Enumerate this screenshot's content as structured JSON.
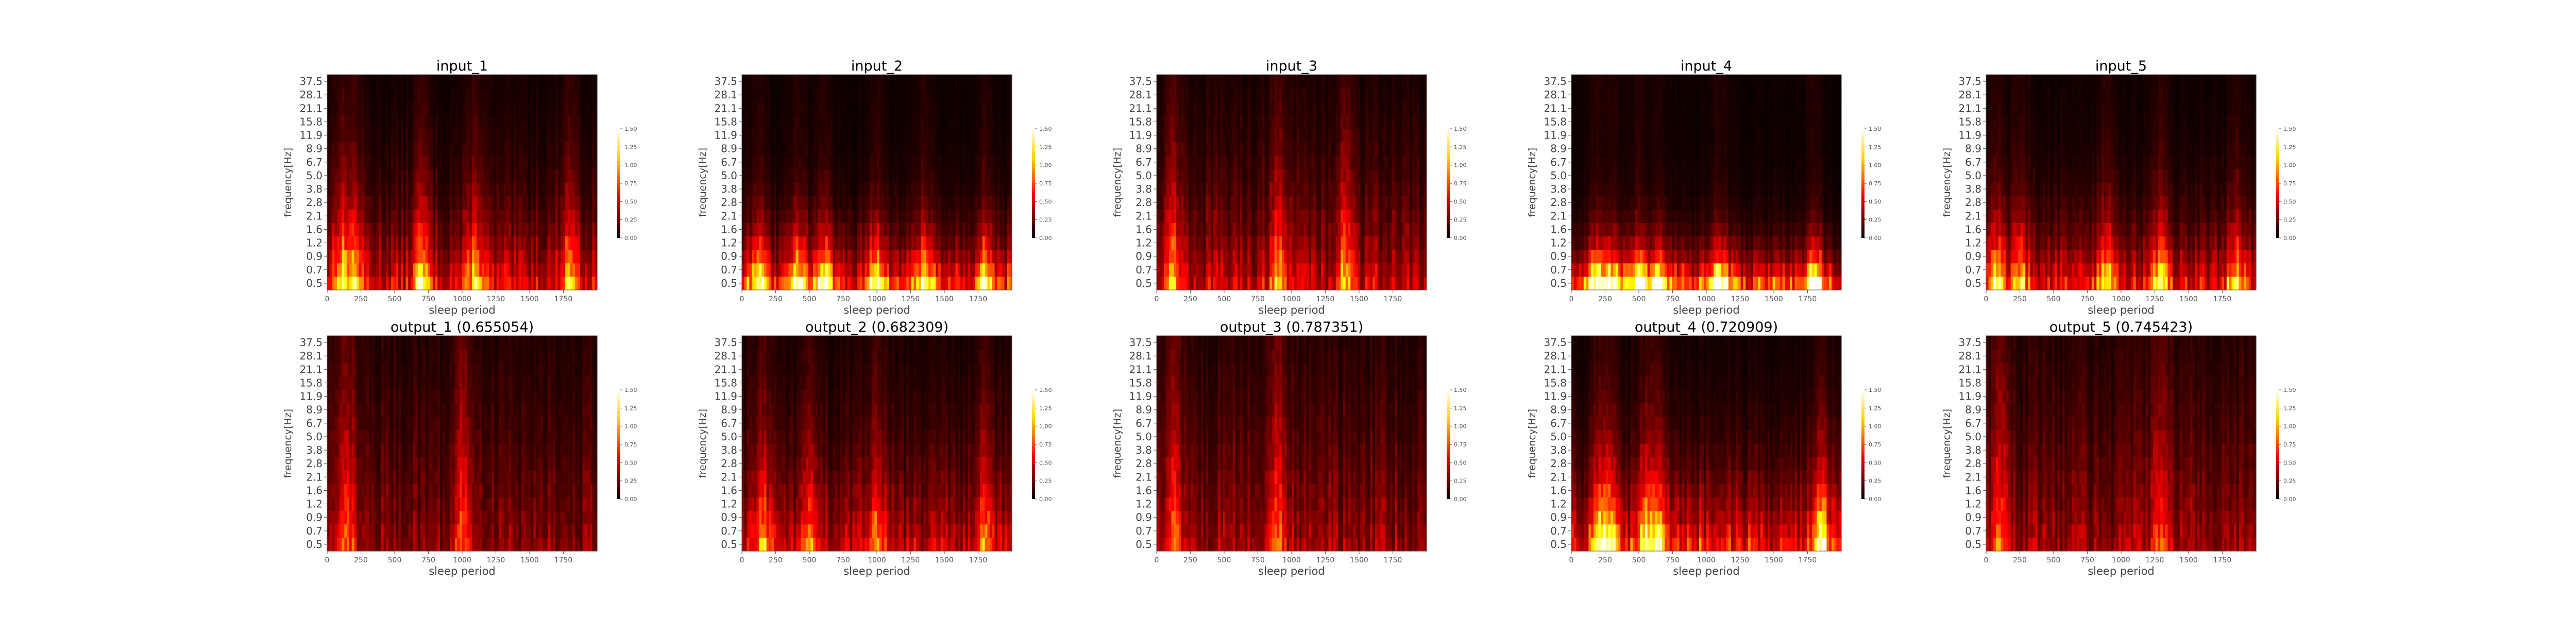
{
  "figure": {
    "colormap": "hot",
    "axis_color": "#555555",
    "background": "#ffffff"
  },
  "chart_data": [
    {
      "type": "heatmap",
      "title": "input_1",
      "xlabel": "sleep period",
      "ylabel": "frequency[Hz]",
      "xticks": [
        "0",
        "250",
        "500",
        "750",
        "1000",
        "1250",
        "1500",
        "1750"
      ],
      "xlim": [
        0,
        2000
      ],
      "yticks": [
        "0.5",
        "0.7",
        "0.9",
        "1.2",
        "1.6",
        "2.1",
        "2.8",
        "3.8",
        "5.0",
        "6.7",
        "8.9",
        "11.9",
        "15.8",
        "21.1",
        "28.1",
        "37.5"
      ],
      "colorbar": {
        "ticks": [
          "0.00",
          "0.25",
          "0.50",
          "0.75",
          "1.00",
          "1.25",
          "1.50"
        ],
        "range": [
          0,
          1.5
        ]
      },
      "intensity_profile": {
        "low_freq_level": 0.75,
        "decay": 0.8,
        "bright_times": [
          100,
          200,
          700,
          1100,
          1800
        ]
      }
    },
    {
      "type": "heatmap",
      "title": "input_2",
      "xlabel": "sleep period",
      "ylabel": "frequency[Hz]",
      "xticks": [
        "0",
        "250",
        "500",
        "750",
        "1000",
        "1250",
        "1500",
        "1750"
      ],
      "xlim": [
        0,
        2000
      ],
      "yticks": [
        "0.5",
        "0.7",
        "0.9",
        "1.2",
        "1.6",
        "2.1",
        "2.8",
        "3.8",
        "5.0",
        "6.7",
        "8.9",
        "11.9",
        "15.8",
        "21.1",
        "28.1",
        "37.5"
      ],
      "colorbar": {
        "ticks": [
          "0.00",
          "0.25",
          "0.50",
          "0.75",
          "1.00",
          "1.25",
          "1.50"
        ],
        "range": [
          0,
          1.5
        ]
      },
      "intensity_profile": {
        "low_freq_level": 0.95,
        "decay": 0.7,
        "bright_times": [
          130,
          420,
          600,
          1000,
          1350,
          1800
        ]
      }
    },
    {
      "type": "heatmap",
      "title": "input_3",
      "xlabel": "sleep period",
      "ylabel": "frequency[Hz]",
      "xticks": [
        "0",
        "250",
        "500",
        "750",
        "1000",
        "1250",
        "1500",
        "1750"
      ],
      "xlim": [
        0,
        2000
      ],
      "yticks": [
        "0.5",
        "0.7",
        "0.9",
        "1.2",
        "1.6",
        "2.1",
        "2.8",
        "3.8",
        "5.0",
        "6.7",
        "8.9",
        "11.9",
        "15.8",
        "21.1",
        "28.1",
        "37.5"
      ],
      "colorbar": {
        "ticks": [
          "0.00",
          "0.25",
          "0.50",
          "0.75",
          "1.00",
          "1.25",
          "1.50"
        ],
        "range": [
          0,
          1.5
        ]
      },
      "intensity_profile": {
        "low_freq_level": 0.65,
        "decay": 0.85,
        "bright_times": [
          120,
          900,
          1400
        ]
      }
    },
    {
      "type": "heatmap",
      "title": "input_4",
      "xlabel": "sleep period",
      "ylabel": "frequency[Hz]",
      "xticks": [
        "0",
        "250",
        "500",
        "750",
        "1000",
        "1250",
        "1500",
        "1750"
      ],
      "xlim": [
        0,
        2000
      ],
      "yticks": [
        "0.5",
        "0.7",
        "0.9",
        "1.2",
        "1.6",
        "2.1",
        "2.8",
        "3.8",
        "5.0",
        "6.7",
        "8.9",
        "11.9",
        "15.8",
        "21.1",
        "28.1",
        "37.5"
      ],
      "colorbar": {
        "ticks": [
          "0.00",
          "0.25",
          "0.50",
          "0.75",
          "1.00",
          "1.25",
          "1.50"
        ],
        "range": [
          0,
          1.5
        ]
      },
      "intensity_profile": {
        "low_freq_level": 1.1,
        "decay": 0.6,
        "bright_times": [
          180,
          300,
          500,
          650,
          1100,
          1800
        ]
      }
    },
    {
      "type": "heatmap",
      "title": "input_5",
      "xlabel": "sleep period",
      "ylabel": "frequency[Hz]",
      "xticks": [
        "0",
        "250",
        "500",
        "750",
        "1000",
        "1250",
        "1500",
        "1750"
      ],
      "xlim": [
        0,
        2000
      ],
      "yticks": [
        "0.5",
        "0.7",
        "0.9",
        "1.2",
        "1.6",
        "2.1",
        "2.8",
        "3.8",
        "5.0",
        "6.7",
        "8.9",
        "11.9",
        "15.8",
        "21.1",
        "28.1",
        "37.5"
      ],
      "colorbar": {
        "ticks": [
          "0.00",
          "0.25",
          "0.50",
          "0.75",
          "1.00",
          "1.25",
          "1.50"
        ],
        "range": [
          0,
          1.5
        ]
      },
      "intensity_profile": {
        "low_freq_level": 0.8,
        "decay": 0.75,
        "bright_times": [
          80,
          250,
          900,
          1300,
          1850
        ]
      }
    },
    {
      "type": "heatmap",
      "title": "output_1 (0.655054)",
      "xlabel": "sleep period",
      "ylabel": "frequency[Hz]",
      "xticks": [
        "0",
        "250",
        "500",
        "750",
        "1000",
        "1250",
        "1500",
        "1750"
      ],
      "xlim": [
        0,
        2000
      ],
      "yticks": [
        "0.5",
        "0.7",
        "0.9",
        "1.2",
        "1.6",
        "2.1",
        "2.8",
        "3.8",
        "5.0",
        "6.7",
        "8.9",
        "11.9",
        "15.8",
        "21.1",
        "28.1",
        "37.5"
      ],
      "colorbar": {
        "ticks": [
          "0.00",
          "0.25",
          "0.50",
          "0.75",
          "1.00",
          "1.25",
          "1.50"
        ],
        "range": [
          0,
          1.5
        ]
      },
      "intensity_profile": {
        "low_freq_level": 0.45,
        "decay": 0.9,
        "bright_times": [
          150,
          1000
        ]
      }
    },
    {
      "type": "heatmap",
      "title": "output_2 (0.682309)",
      "xlabel": "sleep period",
      "ylabel": "frequency[Hz]",
      "xticks": [
        "0",
        "250",
        "500",
        "750",
        "1000",
        "1250",
        "1500",
        "1750"
      ],
      "xlim": [
        0,
        2000
      ],
      "yticks": [
        "0.5",
        "0.7",
        "0.9",
        "1.2",
        "1.6",
        "2.1",
        "2.8",
        "3.8",
        "5.0",
        "6.7",
        "8.9",
        "11.9",
        "15.8",
        "21.1",
        "28.1",
        "37.5"
      ],
      "colorbar": {
        "ticks": [
          "0.00",
          "0.25",
          "0.50",
          "0.75",
          "1.00",
          "1.25",
          "1.50"
        ],
        "range": [
          0,
          1.5
        ]
      },
      "intensity_profile": {
        "low_freq_level": 0.6,
        "decay": 0.85,
        "bright_times": [
          150,
          500,
          1000,
          1800
        ]
      }
    },
    {
      "type": "heatmap",
      "title": "output_3 (0.787351)",
      "xlabel": "sleep period",
      "ylabel": "frequency[Hz]",
      "xticks": [
        "0",
        "250",
        "500",
        "750",
        "1000",
        "1250",
        "1500",
        "1750"
      ],
      "xlim": [
        0,
        2000
      ],
      "yticks": [
        "0.5",
        "0.7",
        "0.9",
        "1.2",
        "1.6",
        "2.1",
        "2.8",
        "3.8",
        "5.0",
        "6.7",
        "8.9",
        "11.9",
        "15.8",
        "21.1",
        "28.1",
        "37.5"
      ],
      "colorbar": {
        "ticks": [
          "0.00",
          "0.25",
          "0.50",
          "0.75",
          "1.00",
          "1.25",
          "1.50"
        ],
        "range": [
          0,
          1.5
        ]
      },
      "intensity_profile": {
        "low_freq_level": 0.5,
        "decay": 0.9,
        "bright_times": [
          120,
          900
        ]
      }
    },
    {
      "type": "heatmap",
      "title": "output_4 (0.720909)",
      "xlabel": "sleep period",
      "ylabel": "frequency[Hz]",
      "xticks": [
        "0",
        "250",
        "500",
        "750",
        "1000",
        "1250",
        "1500",
        "1750"
      ],
      "xlim": [
        0,
        2000
      ],
      "yticks": [
        "0.5",
        "0.7",
        "0.9",
        "1.2",
        "1.6",
        "2.1",
        "2.8",
        "3.8",
        "5.0",
        "6.7",
        "8.9",
        "11.9",
        "15.8",
        "21.1",
        "28.1",
        "37.5"
      ],
      "colorbar": {
        "ticks": [
          "0.00",
          "0.25",
          "0.50",
          "0.75",
          "1.00",
          "1.25",
          "1.50"
        ],
        "range": [
          0,
          1.5
        ]
      },
      "intensity_profile": {
        "low_freq_level": 0.85,
        "decay": 0.8,
        "bright_times": [
          200,
          300,
          550,
          650,
          1850
        ]
      }
    },
    {
      "type": "heatmap",
      "title": "output_5 (0.745423)",
      "xlabel": "sleep period",
      "ylabel": "frequency[Hz]",
      "xticks": [
        "0",
        "250",
        "500",
        "750",
        "1000",
        "1250",
        "1500",
        "1750"
      ],
      "xlim": [
        0,
        2000
      ],
      "yticks": [
        "0.5",
        "0.7",
        "0.9",
        "1.2",
        "1.6",
        "2.1",
        "2.8",
        "3.8",
        "5.0",
        "6.7",
        "8.9",
        "11.9",
        "15.8",
        "21.1",
        "28.1",
        "37.5"
      ],
      "colorbar": {
        "ticks": [
          "0.00",
          "0.25",
          "0.50",
          "0.75",
          "1.00",
          "1.25",
          "1.50"
        ],
        "range": [
          0,
          1.5
        ]
      },
      "intensity_profile": {
        "low_freq_level": 0.5,
        "decay": 0.9,
        "bright_times": [
          100,
          1300
        ]
      }
    }
  ]
}
